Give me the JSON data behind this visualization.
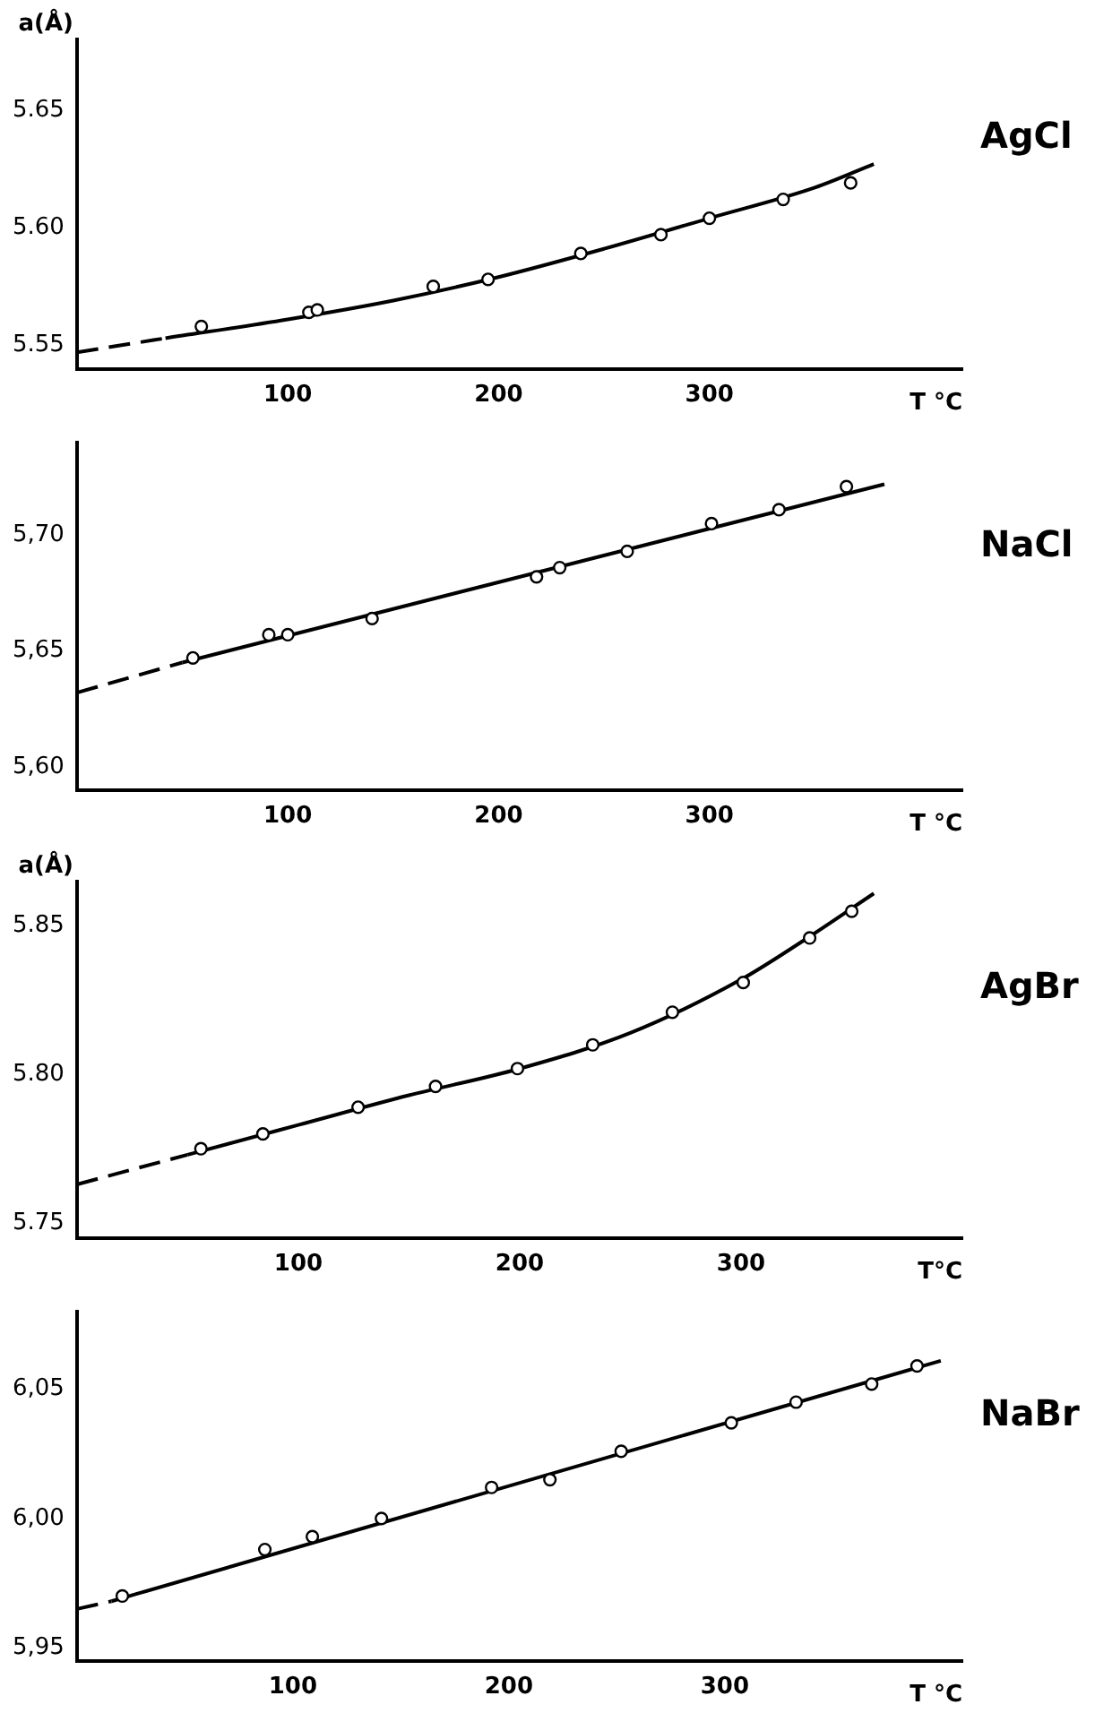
{
  "chart_data": [
    {
      "type": "scatter",
      "title": "AgCl",
      "ylabel": "a(Å)",
      "xlabel": "T °C",
      "xlim": [
        0,
        420
      ],
      "ylim": [
        5.54,
        5.68
      ],
      "xticks": [
        100,
        200,
        300
      ],
      "yticks": [
        {
          "value": 5.55,
          "label": "5.55"
        },
        {
          "value": 5.6,
          "label": "5.60"
        },
        {
          "value": 5.65,
          "label": "5.65"
        }
      ],
      "grid": false,
      "series": [
        {
          "color": "#000000",
          "marker": "circle",
          "x": [
            59,
            110,
            114,
            169,
            195,
            239,
            277,
            300,
            335,
            367
          ],
          "values": [
            5.558,
            5.564,
            5.565,
            5.575,
            5.578,
            5.589,
            5.597,
            5.604,
            5.612,
            5.619
          ]
        },
        {
          "type": "line",
          "color": "#000000",
          "marker": "none",
          "line_style": "solid",
          "x": [
            42,
            100,
            150,
            200,
            250,
            300,
            350,
            378
          ],
          "values": [
            5.553,
            5.561,
            5.569,
            5.579,
            5.591,
            5.604,
            5.617,
            5.627
          ]
        },
        {
          "type": "line",
          "color": "#000000",
          "marker": "none",
          "line_style": "dashed",
          "x": [
            0,
            42
          ],
          "values": [
            5.547,
            5.553
          ]
        }
      ]
    },
    {
      "type": "scatter",
      "title": "NaCl",
      "xlabel": "T °C",
      "xlim": [
        0,
        420
      ],
      "ylim": [
        5.59,
        5.74
      ],
      "xticks": [
        100,
        200,
        300
      ],
      "yticks": [
        {
          "value": 5.6,
          "label": "5,60"
        },
        {
          "value": 5.65,
          "label": "5,65"
        },
        {
          "value": 5.7,
          "label": "5,70"
        }
      ],
      "grid": false,
      "series": [
        {
          "color": "#000000",
          "marker": "circle",
          "x": [
            55,
            91,
            100,
            140,
            218,
            229,
            261,
            301,
            333,
            365
          ],
          "values": [
            5.647,
            5.657,
            5.657,
            5.664,
            5.682,
            5.686,
            5.693,
            5.705,
            5.711,
            5.721
          ]
        },
        {
          "type": "line",
          "color": "#000000",
          "marker": "none",
          "line_style": "solid",
          "x": [
            50,
            383
          ],
          "values": [
            5.645,
            5.722
          ]
        },
        {
          "type": "line",
          "color": "#000000",
          "marker": "none",
          "line_style": "dashed",
          "x": [
            0,
            50
          ],
          "values": [
            5.632,
            5.645
          ]
        }
      ]
    },
    {
      "type": "scatter",
      "title": "AgBr",
      "ylabel": "a(Å)",
      "xlabel": "T°C",
      "xlim": [
        0,
        400
      ],
      "ylim": [
        5.745,
        5.865
      ],
      "xticks": [
        100,
        200,
        300
      ],
      "yticks": [
        {
          "value": 5.75,
          "label": "5.75"
        },
        {
          "value": 5.8,
          "label": "5.80"
        },
        {
          "value": 5.85,
          "label": "5.85"
        }
      ],
      "grid": false,
      "series": [
        {
          "color": "#000000",
          "marker": "circle",
          "x": [
            56,
            84,
            127,
            162,
            199,
            233,
            269,
            301,
            331,
            350
          ],
          "values": [
            5.775,
            5.78,
            5.789,
            5.796,
            5.802,
            5.81,
            5.821,
            5.831,
            5.846,
            5.855
          ]
        },
        {
          "type": "line",
          "color": "#000000",
          "marker": "none",
          "line_style": "solid",
          "x": [
            50,
            100,
            150,
            200,
            250,
            300,
            330,
            360
          ],
          "values": [
            5.773,
            5.783,
            5.793,
            5.802,
            5.814,
            5.832,
            5.846,
            5.861
          ]
        },
        {
          "type": "line",
          "color": "#000000",
          "marker": "none",
          "line_style": "dashed",
          "x": [
            0,
            50
          ],
          "values": [
            5.763,
            5.773
          ]
        }
      ]
    },
    {
      "type": "scatter",
      "title": "NaBr",
      "xlabel": "T °C",
      "xlim": [
        0,
        410
      ],
      "ylim": [
        5.945,
        6.08
      ],
      "xticks": [
        100,
        200,
        300
      ],
      "yticks": [
        {
          "value": 5.95,
          "label": "5,95"
        },
        {
          "value": 6.0,
          "label": "6,00"
        },
        {
          "value": 6.05,
          "label": "6,05"
        }
      ],
      "grid": false,
      "series": [
        {
          "color": "#000000",
          "marker": "circle",
          "x": [
            21,
            87,
            109,
            141,
            192,
            219,
            252,
            303,
            333,
            368,
            389
          ],
          "values": [
            5.97,
            5.988,
            5.993,
            6.0,
            6.012,
            6.015,
            6.026,
            6.037,
            6.045,
            6.052,
            6.059
          ]
        },
        {
          "type": "line",
          "color": "#000000",
          "marker": "none",
          "line_style": "solid",
          "x": [
            16,
            400
          ],
          "values": [
            5.968,
            6.061
          ]
        },
        {
          "type": "line",
          "color": "#000000",
          "marker": "none",
          "line_style": "dashed",
          "x": [
            0,
            16
          ],
          "values": [
            5.965,
            5.968
          ]
        }
      ]
    }
  ]
}
